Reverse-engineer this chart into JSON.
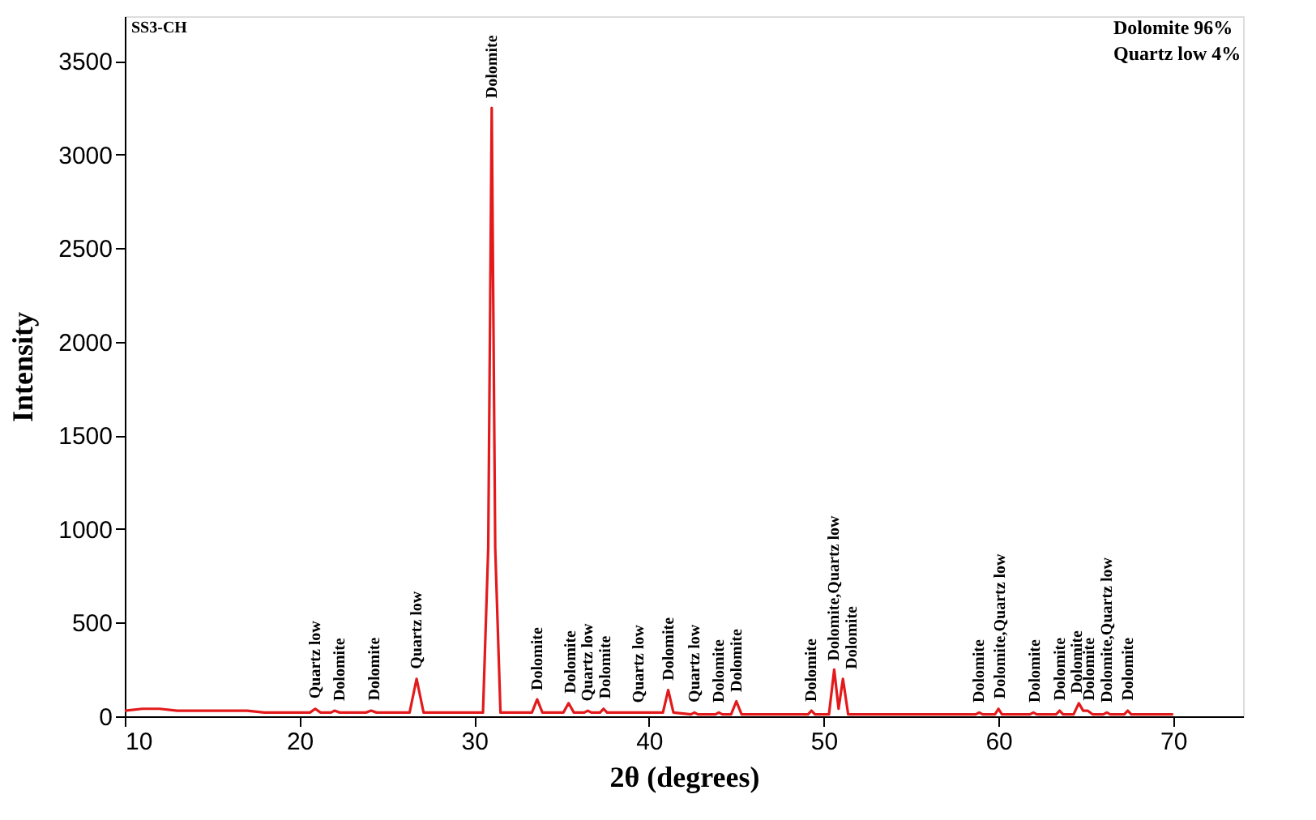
{
  "chart_data": {
    "type": "line",
    "xlabel": "2θ (degrees)",
    "ylabel": "Intensity",
    "xlim": [
      10,
      74
    ],
    "xticks": [
      10,
      20,
      30,
      40,
      50,
      60,
      70
    ],
    "ylim": [
      0,
      3740
    ],
    "yticks": [
      0,
      500,
      1000,
      1500,
      2000,
      2500,
      3000,
      3500
    ],
    "grid": false,
    "marker": "none",
    "line_style": "solid",
    "series": [
      {
        "color": "#e31a1c",
        "x": [
          10,
          11,
          12,
          13,
          14,
          15,
          16,
          17,
          18,
          19,
          20,
          20.6,
          20.9,
          21.2,
          21.8,
          22.0,
          22.3,
          23.8,
          24.1,
          24.4,
          26.3,
          26.7,
          27.1,
          30.5,
          30.8,
          31.0,
          31.2,
          31.5,
          33.3,
          33.6,
          33.9,
          35.1,
          35.4,
          35.7,
          36.3,
          36.5,
          36.7,
          37.2,
          37.4,
          37.6,
          39.2,
          39.4,
          39.6,
          40.8,
          41.1,
          41.4,
          42.4,
          42.6,
          42.8,
          43.8,
          44.0,
          44.2,
          44.7,
          45.0,
          45.3,
          49.1,
          49.3,
          49.5,
          50.3,
          50.6,
          50.85,
          51.1,
          51.4,
          58.7,
          58.9,
          59.1,
          59.8,
          60.0,
          60.2,
          61.8,
          62.0,
          62.2,
          63.3,
          63.5,
          63.7,
          64.3,
          64.6,
          64.85,
          65.1,
          65.4,
          66.0,
          66.2,
          66.4,
          67.2,
          67.4,
          67.6,
          70
        ],
        "values": [
          30,
          40,
          40,
          30,
          30,
          30,
          30,
          30,
          20,
          20,
          20,
          20,
          40,
          20,
          20,
          30,
          20,
          20,
          30,
          20,
          20,
          200,
          20,
          20,
          900,
          3250,
          900,
          20,
          20,
          90,
          20,
          20,
          70,
          20,
          20,
          30,
          20,
          20,
          40,
          20,
          20,
          20,
          20,
          20,
          140,
          20,
          10,
          20,
          10,
          10,
          20,
          10,
          10,
          80,
          10,
          10,
          30,
          10,
          10,
          250,
          40,
          200,
          10,
          10,
          20,
          10,
          10,
          40,
          10,
          10,
          20,
          10,
          10,
          30,
          10,
          10,
          70,
          30,
          30,
          10,
          10,
          20,
          10,
          10,
          30,
          10,
          10
        ]
      }
    ],
    "annotations": [
      "SS3-CH",
      "Dolomite 96%",
      "Quartz low 4%",
      {
        "text": "Quartz low",
        "x": 20.9,
        "y": 42
      },
      {
        "text": "Dolomite",
        "x": 22.3,
        "y": 30
      },
      {
        "text": "Dolomite",
        "x": 24.3,
        "y": 33
      },
      {
        "text": "Quartz low",
        "x": 26.7,
        "y": 200
      },
      {
        "text": "Dolomite",
        "x": 31.0,
        "y": 3250
      },
      {
        "text": "Dolomite",
        "x": 33.6,
        "y": 87
      },
      {
        "text": "Dolomite",
        "x": 35.5,
        "y": 70
      },
      {
        "text": "Quartz low",
        "x": 36.5,
        "y": 28
      },
      {
        "text": "Dolomite",
        "x": 37.5,
        "y": 42
      },
      {
        "text": "Quartz low",
        "x": 39.4,
        "y": 20
      },
      {
        "text": "Dolomite",
        "x": 41.1,
        "y": 140
      },
      {
        "text": "Quartz low",
        "x": 42.6,
        "y": 22
      },
      {
        "text": "Dolomite",
        "x": 44.0,
        "y": 22
      },
      {
        "text": "Dolomite",
        "x": 45.0,
        "y": 78
      },
      {
        "text": "Dolomite",
        "x": 49.3,
        "y": 26
      },
      {
        "text": "Dolomite,Quartz low",
        "x": 50.6,
        "y": 245
      },
      {
        "text": "Dolomite",
        "x": 51.6,
        "y": 200
      },
      {
        "text": "Dolomite",
        "x": 58.9,
        "y": 22
      },
      {
        "text": "Dolomite,Quartz low",
        "x": 60.1,
        "y": 42
      },
      {
        "text": "Dolomite",
        "x": 62.1,
        "y": 22
      },
      {
        "text": "Dolomite",
        "x": 63.5,
        "y": 32
      },
      {
        "text": "Dolomite",
        "x": 64.5,
        "y": 70
      },
      {
        "text": "Dolomite",
        "x": 65.2,
        "y": 32
      },
      {
        "text": "Dolomite,Quartz low",
        "x": 66.2,
        "y": 22
      },
      {
        "text": "Dolomite",
        "x": 67.4,
        "y": 32
      }
    ]
  }
}
